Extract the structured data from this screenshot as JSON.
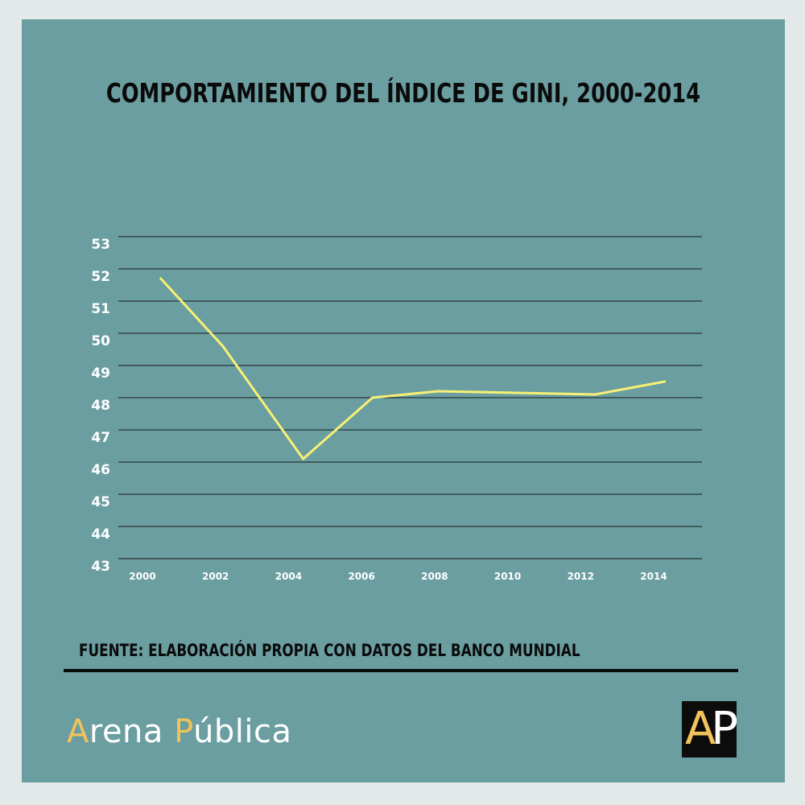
{
  "title": "COMPORTAMIENTO DEL ÍNDICE DE GINI, 2000-2014",
  "source": "FUENTE: ELABORACIÓN PROPIA CON DATOS DEL BANCO MUNDIAL",
  "brand": {
    "first_initial": "A",
    "first_rest": "rena ",
    "second_initial": "P",
    "second_rest": "ública"
  },
  "logo": {
    "letter1": "A",
    "letter2": "P"
  },
  "colors": {
    "background": "#6b9ea1",
    "line": "#f7f074",
    "accent": "#f2c35a",
    "grid": "#1a1a1a"
  },
  "chart_data": {
    "type": "line",
    "title": "COMPORTAMIENTO DEL ÍNDICE DE GINI, 2000-2014",
    "xlabel": "",
    "ylabel": "",
    "x_ticks": [
      "2000",
      "2002",
      "2004",
      "2006",
      "2008",
      "2010",
      "2012",
      "2014"
    ],
    "y_ticks": [
      "53",
      "52",
      "51",
      "50",
      "49",
      "48",
      "47",
      "46",
      "45",
      "44",
      "43"
    ],
    "xlim": [
      2000,
      2014
    ],
    "ylim": [
      43,
      53
    ],
    "grid": true,
    "legend": "none",
    "series": [
      {
        "x": [
          2000.5,
          2002.2,
          2004.4,
          2006.3,
          2008.1,
          2012.4,
          2014.3
        ],
        "y": [
          51.7,
          49.6,
          46.1,
          48.0,
          48.2,
          48.1,
          48.5
        ]
      }
    ]
  }
}
